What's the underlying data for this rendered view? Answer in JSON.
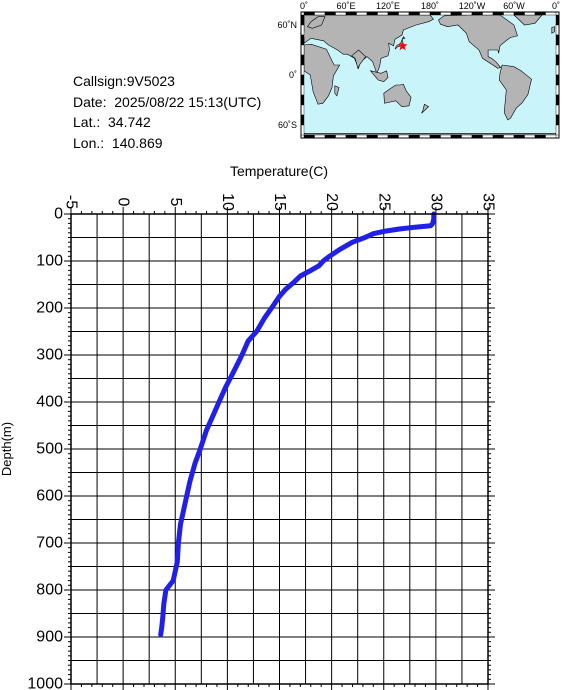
{
  "info": {
    "callsign": "Callsign:9V5023",
    "date": "Date:  2025/08/22 15:13(UTC)",
    "lat": "Lat.:  34.742",
    "lon": "Lon.:  140.869"
  },
  "map": {
    "lon_labels": [
      "0˚",
      "60˚E",
      "120˚E",
      "180˚",
      "120˚W",
      "60˚W",
      "0˚"
    ],
    "lat_labels": [
      "60˚N",
      "0˚",
      "60˚S"
    ],
    "ocean_color": "#c8f4fa",
    "land_color": "#b4b4b4",
    "marker": {
      "lat": 34.742,
      "lon": 140.869,
      "color": "#ff0000"
    }
  },
  "chart_data": {
    "type": "line",
    "xlabel": "Temperature(C)",
    "ylabel": "Depth(m)",
    "xlim": [
      -5,
      35
    ],
    "ylim": [
      1000,
      0
    ],
    "x_ticks": [
      "-5",
      "0",
      "5",
      "10",
      "15",
      "20",
      "25",
      "30",
      "35"
    ],
    "y_ticks": [
      "0",
      "100",
      "200",
      "300",
      "400",
      "500",
      "600",
      "700",
      "800",
      "900",
      "1000"
    ],
    "grid": true,
    "line_color": "#2020e8",
    "series": [
      {
        "points": [
          [
            29.8,
            0
          ],
          [
            29.8,
            10
          ],
          [
            29.7,
            20
          ],
          [
            29.5,
            25
          ],
          [
            28.0,
            28
          ],
          [
            26.5,
            32
          ],
          [
            25.0,
            37
          ],
          [
            24.0,
            42
          ],
          [
            23.2,
            50
          ],
          [
            22.0,
            60
          ],
          [
            20.8,
            75
          ],
          [
            19.8,
            90
          ],
          [
            19.2,
            100
          ],
          [
            18.8,
            110
          ],
          [
            18.0,
            120
          ],
          [
            17.0,
            132
          ],
          [
            16.4,
            145
          ],
          [
            15.6,
            160
          ],
          [
            15.0,
            175
          ],
          [
            14.4,
            195
          ],
          [
            13.6,
            220
          ],
          [
            12.8,
            250
          ],
          [
            12.0,
            270
          ],
          [
            11.4,
            300
          ],
          [
            10.5,
            340
          ],
          [
            9.8,
            370
          ],
          [
            9.2,
            400
          ],
          [
            8.6,
            430
          ],
          [
            8.0,
            460
          ],
          [
            7.4,
            500
          ],
          [
            6.9,
            530
          ],
          [
            6.4,
            570
          ],
          [
            6.1,
            600
          ],
          [
            5.8,
            630
          ],
          [
            5.5,
            660
          ],
          [
            5.3,
            700
          ],
          [
            5.2,
            740
          ],
          [
            4.8,
            780
          ],
          [
            4.1,
            800
          ],
          [
            3.9,
            830
          ],
          [
            3.8,
            860
          ],
          [
            3.7,
            880
          ],
          [
            3.6,
            895
          ]
        ]
      }
    ]
  }
}
